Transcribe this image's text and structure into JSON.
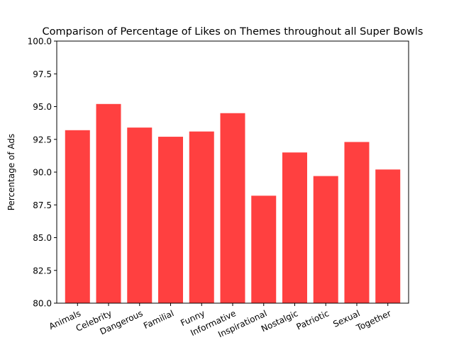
{
  "chart_data": {
    "type": "bar",
    "title": "Comparison of Percentage of Likes on Themes throughout all Super Bowls",
    "xlabel": "",
    "ylabel": "Percentage of Ads",
    "categories": [
      "Animals",
      "Celebrity",
      "Dangerous",
      "Familial",
      "Funny",
      "Informative",
      "Inspirational",
      "Nostalgic",
      "Patriotic",
      "Sexual",
      "Together"
    ],
    "values": [
      93.2,
      95.2,
      93.4,
      92.7,
      93.1,
      94.5,
      88.2,
      91.5,
      89.7,
      92.3,
      90.2
    ],
    "ylim": [
      80,
      100
    ],
    "yticks": [
      80.0,
      82.5,
      85.0,
      87.5,
      90.0,
      92.5,
      95.0,
      97.5,
      100.0
    ],
    "ytick_labels": [
      "80.0",
      "82.5",
      "85.0",
      "87.5",
      "90.0",
      "92.5",
      "95.0",
      "97.5",
      "100.0"
    ],
    "xtick_rotation_deg": 25,
    "bar_color": "#ff4040",
    "grid": false,
    "legend": "none"
  }
}
